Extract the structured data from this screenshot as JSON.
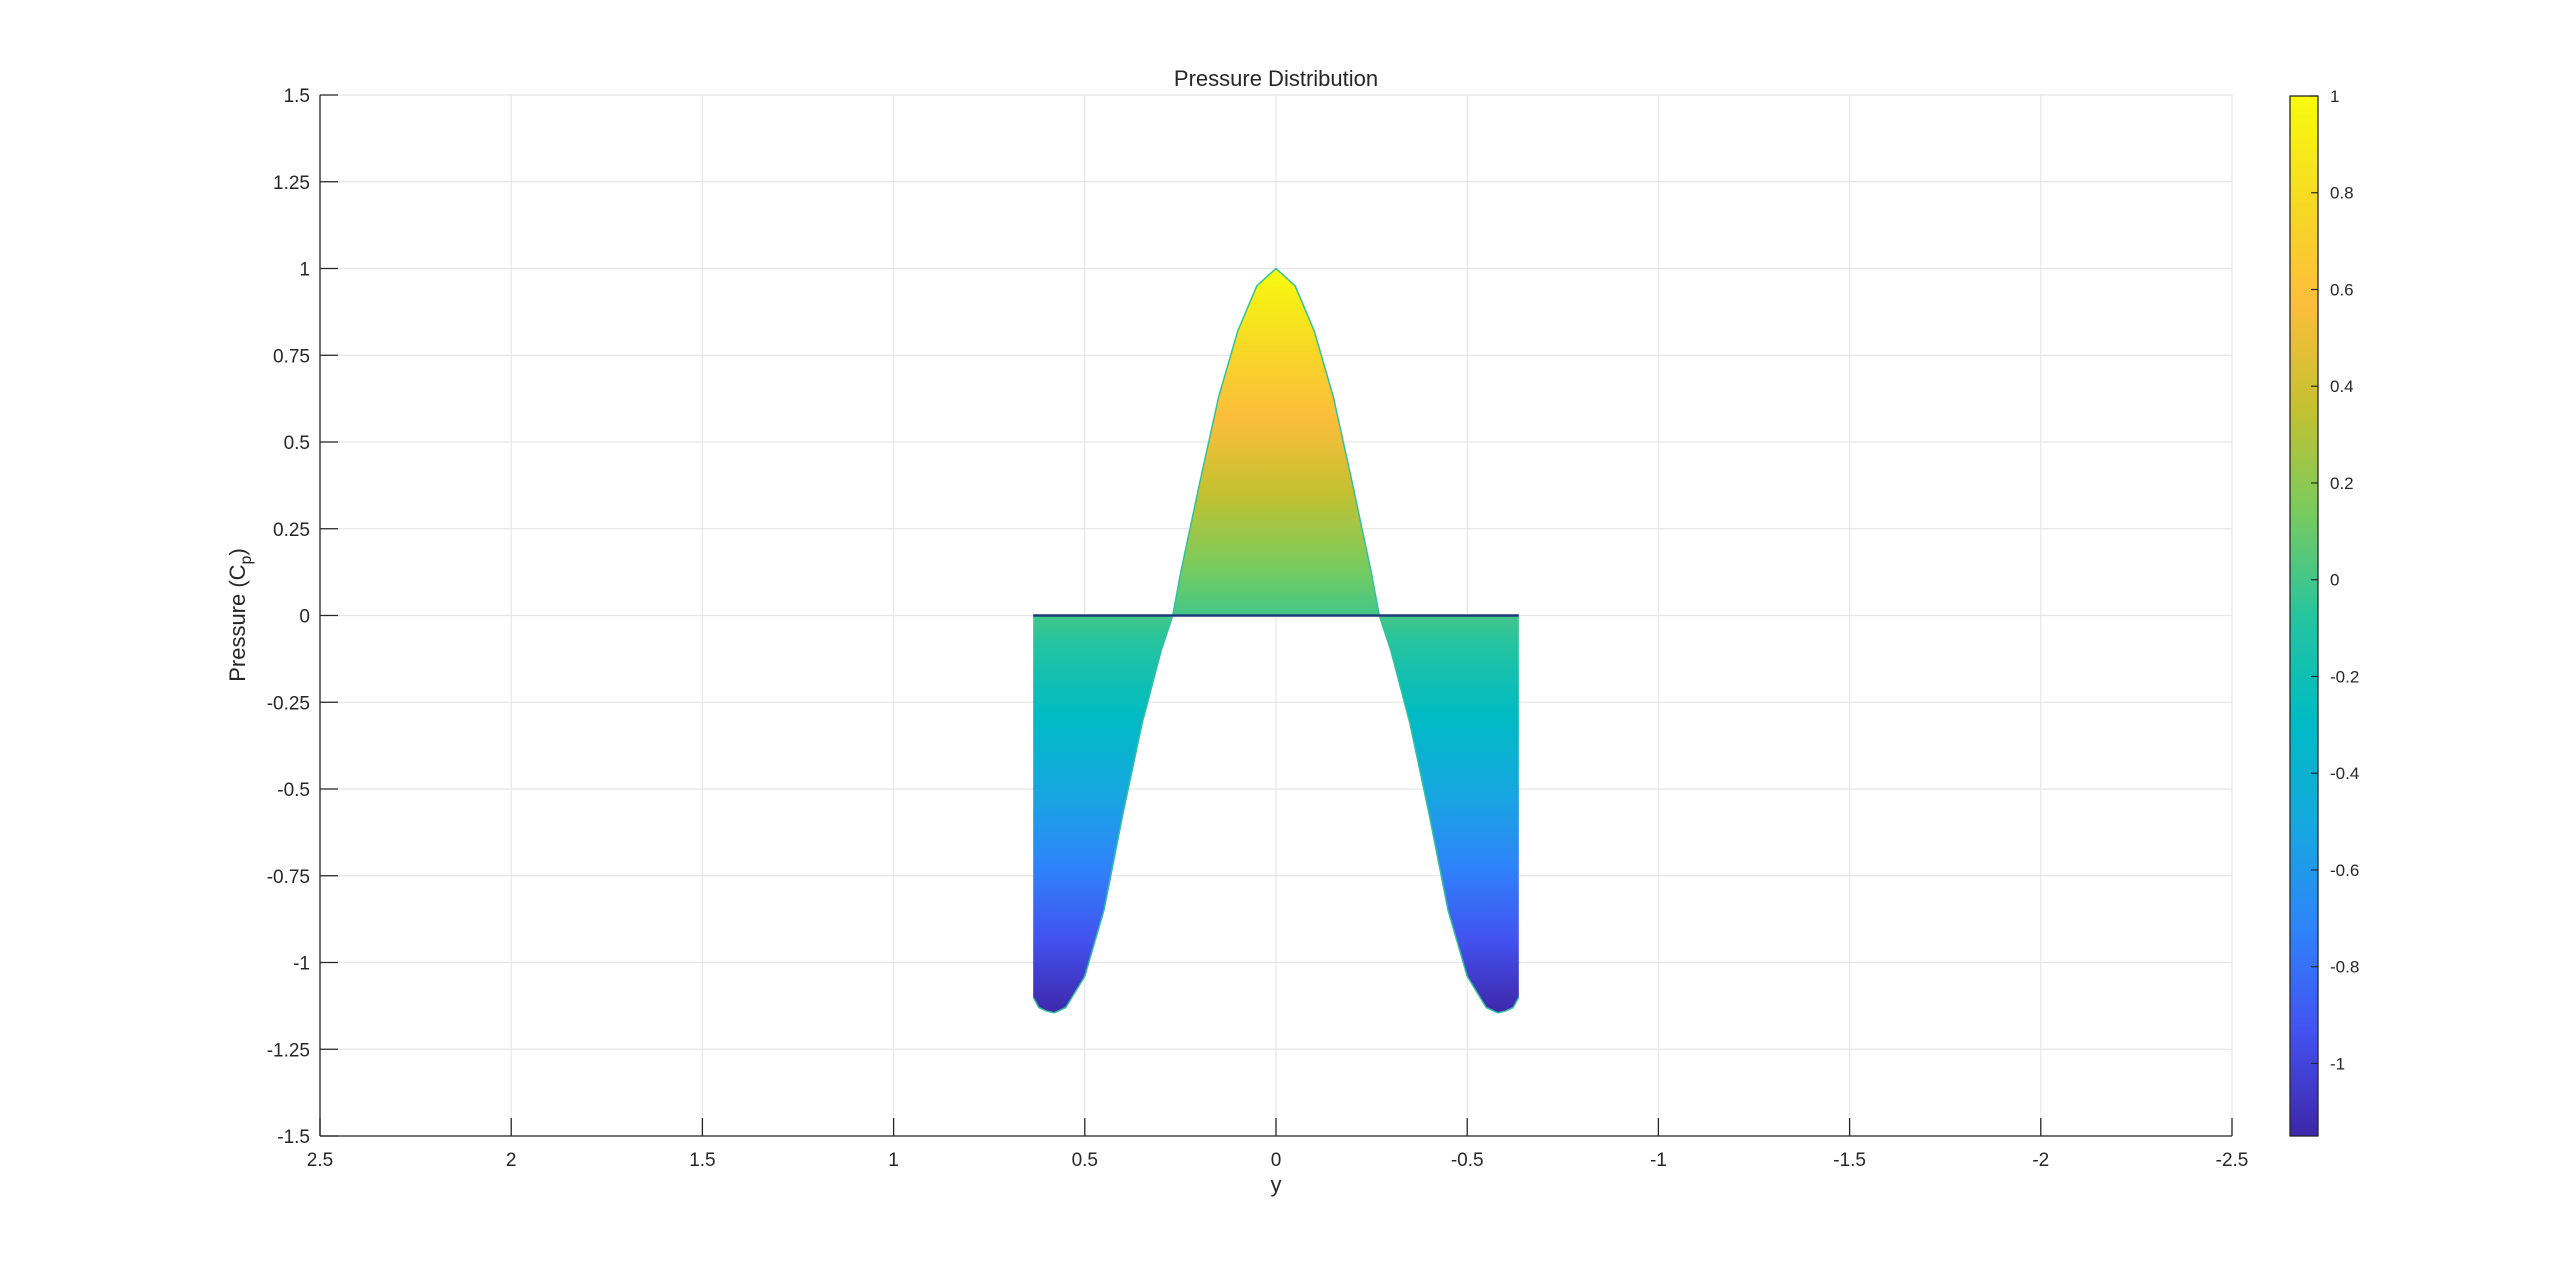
{
  "chart_data": {
    "type": "area",
    "title": "Pressure Distribution",
    "xlabel": "y",
    "ylabel_main": "Pressure (C",
    "ylabel_sub": "p",
    "ylabel_close": ")",
    "xlim": [
      2.5,
      -2.5
    ],
    "ylim": [
      -1.5,
      1.5
    ],
    "x_reversed": true,
    "grid": true,
    "x_ticks": [
      2.5,
      2,
      1.5,
      1,
      0.5,
      0,
      -0.5,
      -1,
      -1.5,
      -2,
      -2.5
    ],
    "x_tick_labels": [
      "2.5",
      "2",
      "1.5",
      "1",
      "0.5",
      "0",
      "-0.5",
      "-1",
      "-1.5",
      "-2",
      "-2.5"
    ],
    "y_ticks": [
      1.5,
      1.25,
      1,
      0.75,
      0.5,
      0.25,
      0,
      -0.25,
      -0.5,
      -0.75,
      -1,
      -1.25,
      -1.5
    ],
    "y_tick_labels": [
      "1.5",
      "1.25",
      "1",
      "0.75",
      "0.5",
      "0.25",
      "0",
      "-0.25",
      "-0.5",
      "-0.75",
      "-1",
      "-1.25",
      "-1.5"
    ],
    "series": [
      {
        "x": [
          0.635,
          0.62,
          0.6,
          0.58,
          0.55,
          0.5,
          0.45,
          0.4,
          0.35,
          0.3,
          0.27,
          0.25,
          0.2,
          0.15,
          0.1,
          0.05,
          0,
          -0.05,
          -0.1,
          -0.15,
          -0.2,
          -0.25,
          -0.27,
          -0.3,
          -0.35,
          -0.4,
          -0.45,
          -0.5,
          -0.55,
          -0.58,
          -0.6,
          -0.62,
          -0.635
        ],
        "y": [
          -1.1,
          -1.13,
          -1.14,
          -1.145,
          -1.13,
          -1.04,
          -0.85,
          -0.57,
          -0.31,
          -0.1,
          0.0,
          0.12,
          0.38,
          0.63,
          0.82,
          0.95,
          1.0,
          0.95,
          0.82,
          0.63,
          0.38,
          0.12,
          0.0,
          -0.1,
          -0.31,
          -0.57,
          -0.85,
          -1.04,
          -1.13,
          -1.145,
          -1.14,
          -1.13,
          -1.1
        ]
      }
    ],
    "colorbar": {
      "range": [
        -1.15,
        1.0
      ],
      "ticks": [
        1,
        0.8,
        0.6,
        0.4,
        0.2,
        0,
        -0.2,
        -0.4,
        -0.6,
        -0.8,
        -1
      ],
      "tick_labels": [
        "1",
        "0.8",
        "0.6",
        "0.4",
        "0.2",
        "0",
        "-0.2",
        "-0.4",
        "-0.6",
        "-0.8",
        "-1"
      ],
      "colormap": "parula",
      "colors": [
        "#3e26a8",
        "#4352f0",
        "#2e84fa",
        "#16a8df",
        "#00bbc4",
        "#26c49f",
        "#79cb5e",
        "#c4c130",
        "#fdbd3c",
        "#f6da23",
        "#f9fb0e"
      ]
    }
  }
}
